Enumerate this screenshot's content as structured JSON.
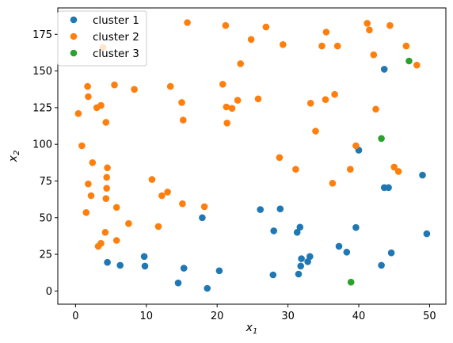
{
  "chart_data": {
    "type": "scatter",
    "xlabel": "x",
    "xlabel_sub": "1",
    "ylabel": "x",
    "ylabel_sub": "2",
    "xlim": [
      -2.5,
      52.3
    ],
    "ylim": [
      -9,
      193
    ],
    "xticks": [
      0,
      10,
      20,
      30,
      40,
      50
    ],
    "yticks": [
      0,
      25,
      50,
      75,
      100,
      125,
      150,
      175
    ],
    "grid": false,
    "legend_position": "top-left",
    "series": [
      {
        "name": "cluster 1",
        "color": "#1f77b4",
        "points": [
          [
            4.5,
            19.5
          ],
          [
            6.3,
            17.5
          ],
          [
            9.7,
            23.5
          ],
          [
            9.8,
            17
          ],
          [
            14.5,
            5.5
          ],
          [
            15.3,
            15.5
          ],
          [
            17.9,
            50
          ],
          [
            18.6,
            1.8
          ],
          [
            20.3,
            13.8
          ],
          [
            26.1,
            55.5
          ],
          [
            28.0,
            41
          ],
          [
            27.9,
            11
          ],
          [
            28.9,
            56
          ],
          [
            31.3,
            40
          ],
          [
            31.7,
            43.5
          ],
          [
            31.5,
            11.5
          ],
          [
            31.9,
            22
          ],
          [
            31.8,
            17
          ],
          [
            32.8,
            20
          ],
          [
            33.1,
            23.5
          ],
          [
            37.2,
            30.5
          ],
          [
            38.3,
            26.5
          ],
          [
            39.6,
            43.3
          ],
          [
            40.0,
            96
          ],
          [
            43.2,
            17.5
          ],
          [
            43.6,
            151.2
          ],
          [
            43.6,
            70.5
          ],
          [
            44.2,
            70.5
          ],
          [
            44.6,
            26
          ],
          [
            49.0,
            79
          ],
          [
            49.6,
            39
          ]
        ]
      },
      {
        "name": "cluster 2",
        "color": "#ff7f0e",
        "points": [
          [
            0.4,
            121
          ],
          [
            0.9,
            99
          ],
          [
            1.5,
            53.5
          ],
          [
            1.7,
            139.5
          ],
          [
            1.8,
            132.5
          ],
          [
            1.8,
            73
          ],
          [
            2.2,
            65
          ],
          [
            2.4,
            87.5
          ],
          [
            3.0,
            125
          ],
          [
            3.2,
            30.5
          ],
          [
            3.6,
            126.5
          ],
          [
            3.6,
            32.5
          ],
          [
            3.9,
            166
          ],
          [
            4.2,
            40
          ],
          [
            4.3,
            115
          ],
          [
            4.4,
            70
          ],
          [
            4.3,
            63
          ],
          [
            4.4,
            77.5
          ],
          [
            4.5,
            84
          ],
          [
            5.5,
            140.5
          ],
          [
            5.8,
            57
          ],
          [
            5.8,
            34.5
          ],
          [
            7.5,
            46
          ],
          [
            8.3,
            137.5
          ],
          [
            10.8,
            76
          ],
          [
            11.7,
            44
          ],
          [
            12.2,
            65
          ],
          [
            13.0,
            67.5
          ],
          [
            13.4,
            139.5
          ],
          [
            15.0,
            128.5
          ],
          [
            15.2,
            116.5
          ],
          [
            15.1,
            59.5
          ],
          [
            15.8,
            183
          ],
          [
            18.2,
            57.5
          ],
          [
            20.8,
            141
          ],
          [
            21.2,
            181
          ],
          [
            21.3,
            125.5
          ],
          [
            21.4,
            114.5
          ],
          [
            22.1,
            124.5
          ],
          [
            22.9,
            130
          ],
          [
            23.3,
            155
          ],
          [
            24.8,
            171.5
          ],
          [
            25.8,
            131
          ],
          [
            26.9,
            180
          ],
          [
            28.8,
            91
          ],
          [
            29.3,
            168
          ],
          [
            31.1,
            83
          ],
          [
            33.2,
            128
          ],
          [
            33.9,
            109
          ],
          [
            34.8,
            167
          ],
          [
            35.3,
            130.5
          ],
          [
            35.4,
            176.5
          ],
          [
            36.3,
            73.5
          ],
          [
            36.6,
            134
          ],
          [
            37.0,
            167
          ],
          [
            38.8,
            83
          ],
          [
            39.6,
            99
          ],
          [
            41.2,
            182.5
          ],
          [
            41.5,
            178
          ],
          [
            42.1,
            161
          ],
          [
            42.4,
            124
          ],
          [
            44.4,
            181
          ],
          [
            45.0,
            84.5
          ],
          [
            45.6,
            81.5
          ],
          [
            46.7,
            167
          ],
          [
            48.2,
            154
          ]
        ]
      },
      {
        "name": "cluster 3",
        "color": "#2ca02c",
        "points": [
          [
            38.9,
            6
          ],
          [
            43.2,
            104
          ],
          [
            47.1,
            156.8
          ]
        ]
      }
    ]
  }
}
